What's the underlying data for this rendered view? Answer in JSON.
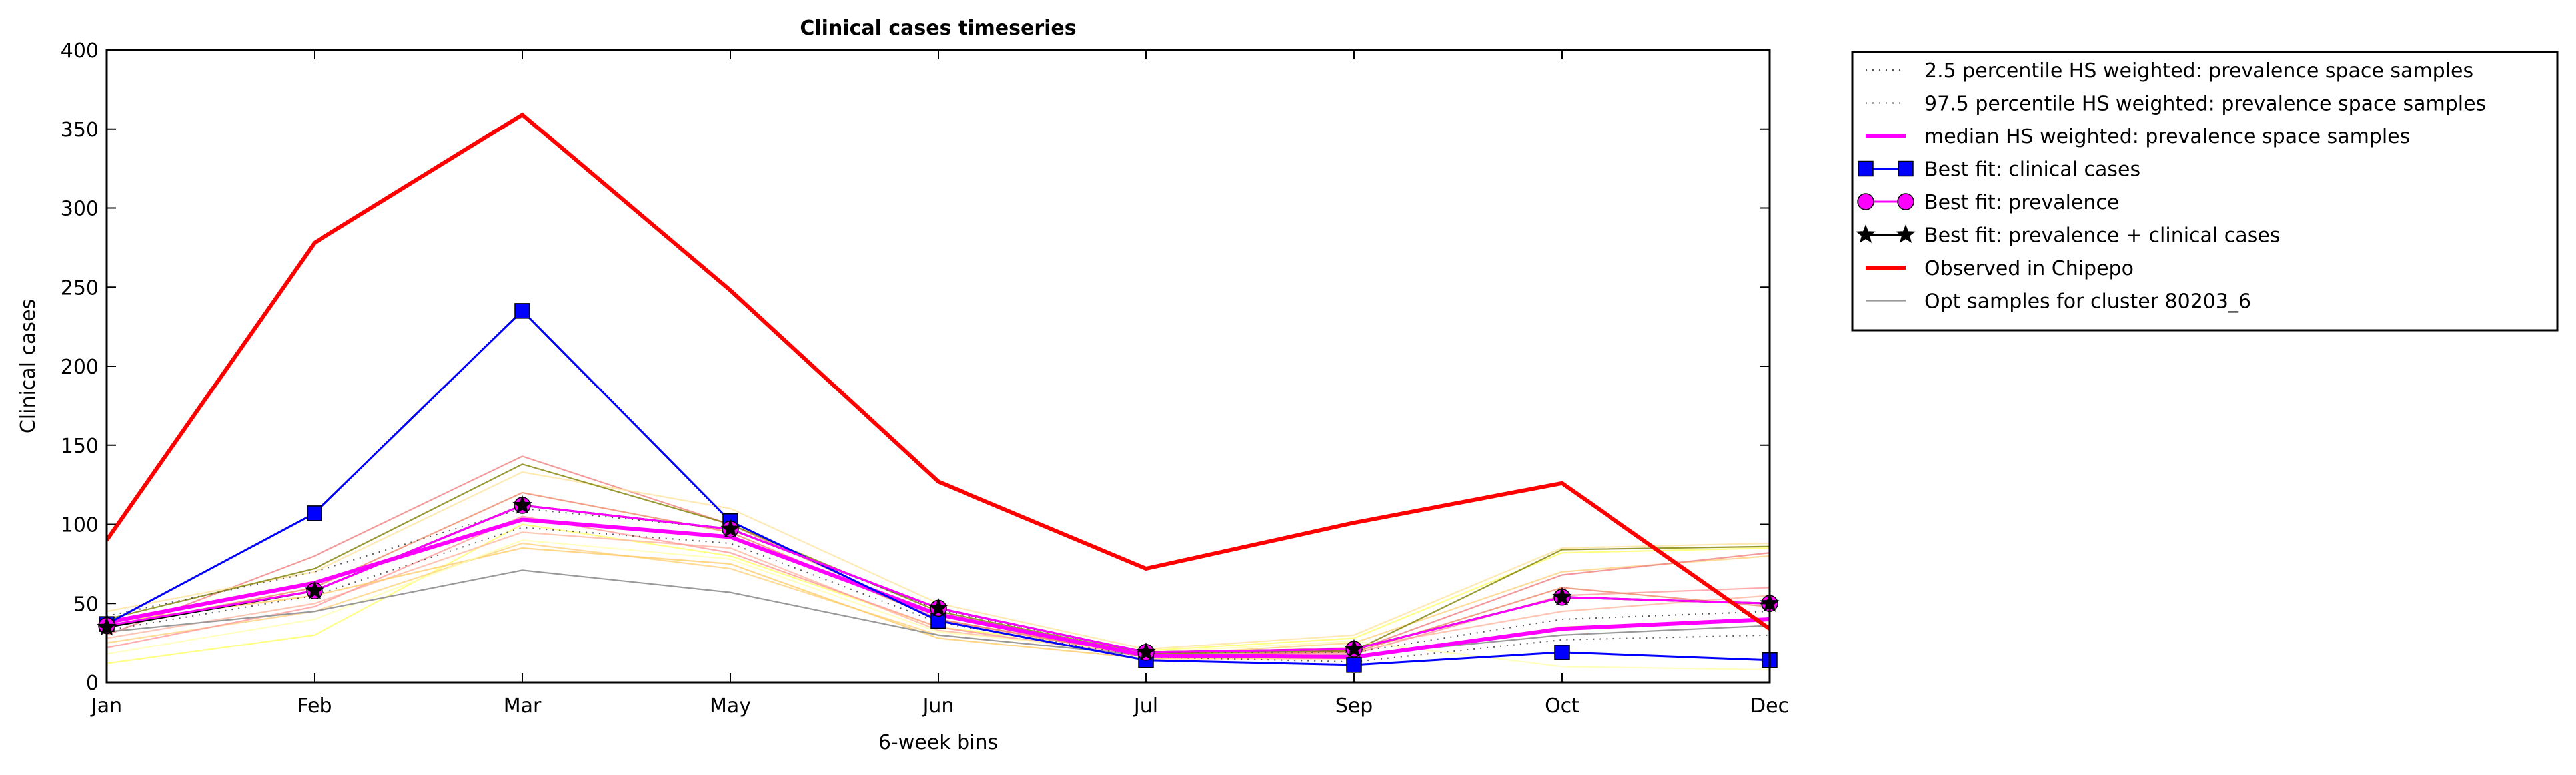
{
  "chart_data": {
    "type": "line",
    "title": "Clinical cases timeseries",
    "xlabel": "6-week bins",
    "ylabel": "Clinical cases",
    "categories": [
      "Jan",
      "Feb",
      "Mar",
      "May",
      "Jun",
      "Jul",
      "Sep",
      "Oct",
      "Dec"
    ],
    "ylim": [
      0,
      400
    ],
    "yticks": [
      0,
      50,
      100,
      150,
      200,
      250,
      300,
      350,
      400
    ],
    "grid": false,
    "legend_position": "outside-top-right",
    "series": [
      {
        "name": "2.5 percentile HS weighted: prevalence space samples",
        "style": "dotted",
        "color": "#555555",
        "values": [
          33,
          55,
          98,
          88,
          38,
          16,
          13,
          27,
          30
        ]
      },
      {
        "name": "97.5 percentile HS weighted: prevalence space samples",
        "style": "dotted",
        "color": "#555555",
        "values": [
          42,
          70,
          110,
          97,
          46,
          19,
          19,
          40,
          45
        ]
      },
      {
        "name": "median HS weighted: prevalence space samples",
        "style": "thick",
        "color": "#ff00ff",
        "values": [
          38,
          63,
          103,
          92,
          43,
          17,
          16,
          34,
          40
        ]
      },
      {
        "name": "Best fit: clinical cases",
        "style": "square-marker",
        "color": "#0000ff",
        "values": [
          37,
          107,
          235,
          102,
          39,
          14,
          11,
          19,
          14
        ]
      },
      {
        "name": "Best fit: prevalence",
        "style": "circle-marker",
        "color": "#ff00ff",
        "values": [
          36,
          58,
          112,
          97,
          47,
          19,
          21,
          54,
          50
        ]
      },
      {
        "name": "Best fit: prevalence + clinical cases",
        "style": "star-marker",
        "color": "#000000",
        "values": [
          35,
          58,
          112,
          97,
          47,
          19,
          21,
          54,
          50
        ]
      },
      {
        "name": "Observed in Chipepo",
        "style": "thick",
        "color": "#ff0000",
        "values": [
          90,
          278,
          359,
          248,
          127,
          72,
          101,
          126,
          34
        ]
      },
      {
        "name": "Opt samples for cluster 80203_6",
        "style": "thin",
        "color": "#999999",
        "values": [
          32,
          45,
          71,
          57,
          30,
          17,
          17,
          30,
          36
        ]
      }
    ],
    "sample_series": [
      {
        "color": "#ffff66",
        "values": [
          12,
          30,
          100,
          80,
          35,
          20,
          28,
          82,
          85
        ]
      },
      {
        "color": "#ffd27f",
        "values": [
          25,
          45,
          88,
          72,
          30,
          17,
          25,
          70,
          80
        ]
      },
      {
        "color": "#f08080",
        "values": [
          30,
          80,
          143,
          100,
          40,
          16,
          20,
          68,
          82
        ]
      },
      {
        "color": "#ffe4a0",
        "values": [
          45,
          70,
          133,
          110,
          50,
          21,
          30,
          85,
          88
        ]
      },
      {
        "color": "#ffb6a0",
        "values": [
          28,
          50,
          95,
          85,
          33,
          18,
          22,
          45,
          55
        ]
      },
      {
        "color": "#808000",
        "values": [
          40,
          72,
          138,
          100,
          45,
          18,
          20,
          84,
          86
        ]
      },
      {
        "color": "#ff9999",
        "values": [
          22,
          48,
          105,
          82,
          35,
          16,
          18,
          55,
          60
        ]
      },
      {
        "color": "#ffcc66",
        "values": [
          38,
          55,
          85,
          75,
          28,
          15,
          15,
          35,
          40
        ]
      },
      {
        "color": "#ffffb0",
        "values": [
          18,
          40,
          90,
          78,
          32,
          19,
          26,
          10,
          8
        ]
      },
      {
        "color": "#ee8866",
        "values": [
          35,
          60,
          120,
          95,
          40,
          17,
          19,
          60,
          48
        ]
      }
    ]
  }
}
